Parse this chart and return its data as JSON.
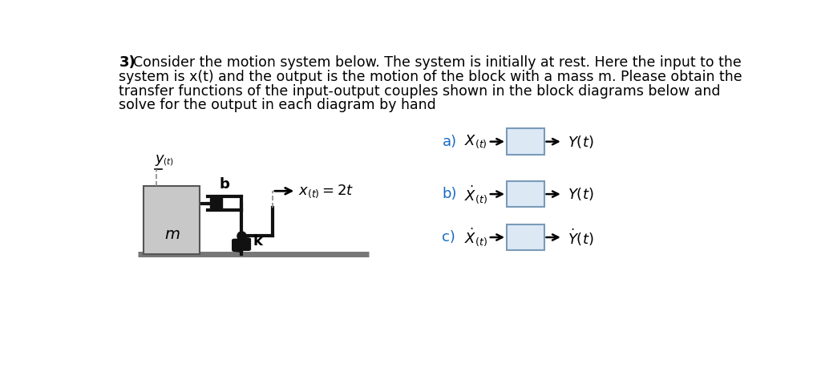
{
  "background_color": "#ffffff",
  "text_color": "#000000",
  "block_fill_color": "#dce9f5",
  "block_edge_color": "#7a9ab8",
  "mass_fill_color": "#c8c8c8",
  "mass_edge_color": "#555555",
  "ground_color": "#777777",
  "arrow_color": "#000000",
  "dashed_color": "#888888",
  "damper_color": "#111111",
  "spring_color": "#111111",
  "label_color": "#1a6bc4",
  "line1": "Consider the motion system below. The system is initially at rest. Here the input to the",
  "line2": "system is x(t) and the output is the motion of the block with a mass m. Please obtain the",
  "line3": "transfer functions of the input-output couples shown in the block diagrams below and",
  "line4": "solve for the output in each diagram by hand"
}
